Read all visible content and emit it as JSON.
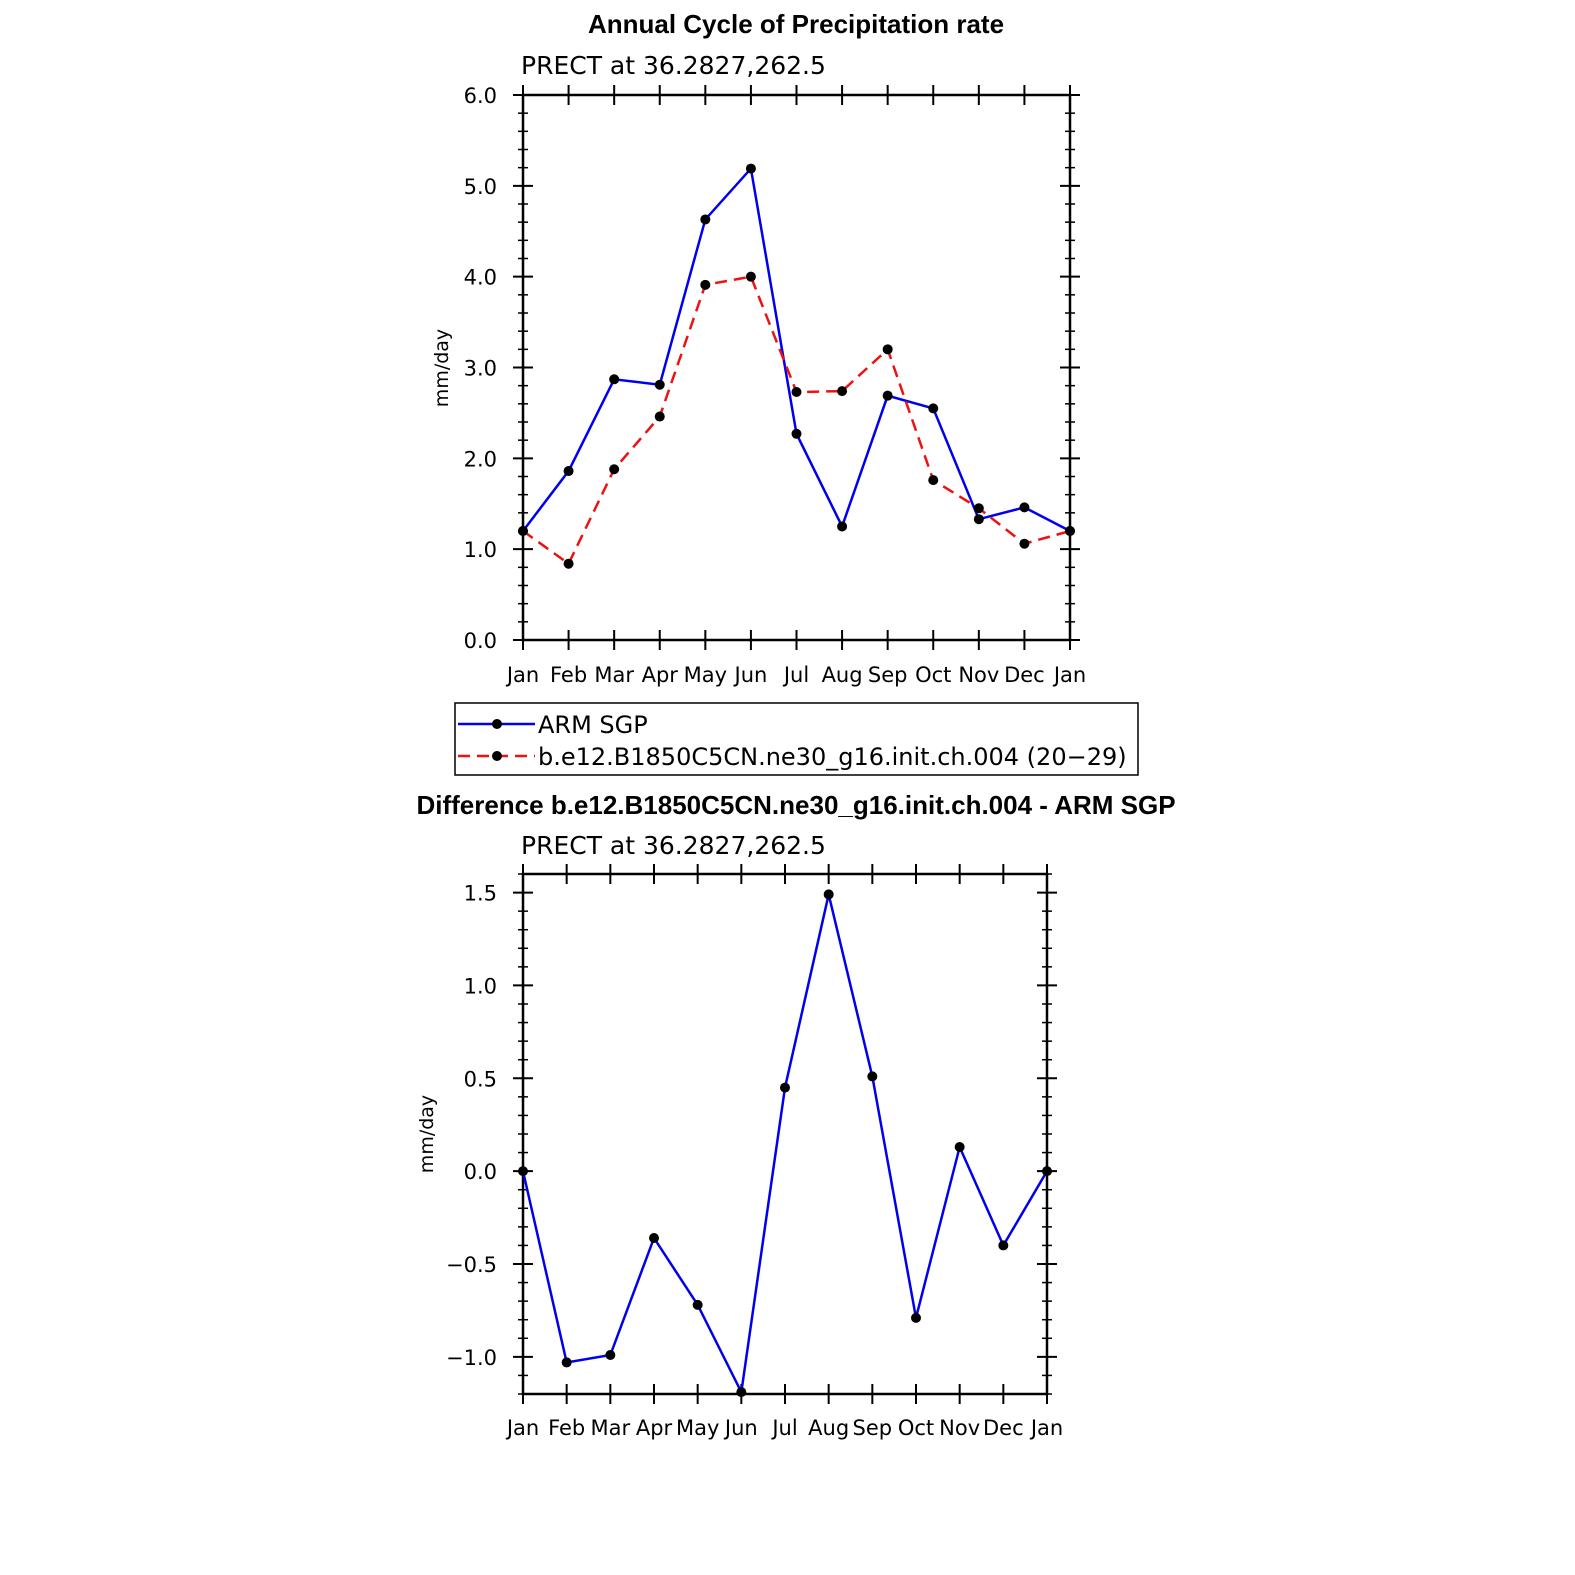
{
  "chart_data": [
    {
      "type": "line",
      "title": "Annual Cycle of Precipitation rate",
      "subtitle": "PRECT at 36.2827,262.5",
      "xlabel": "",
      "ylabel": "mm/day",
      "categories": [
        "Jan",
        "Feb",
        "Mar",
        "Apr",
        "May",
        "Jun",
        "Jul",
        "Aug",
        "Sep",
        "Oct",
        "Nov",
        "Dec",
        "Jan"
      ],
      "ylim": [
        0,
        6
      ],
      "yticks": [
        0,
        1,
        2,
        3,
        4,
        5,
        6
      ],
      "ytick_labels": [
        "0.0",
        "1.0",
        "2.0",
        "3.0",
        "4.0",
        "5.0",
        "6.0"
      ],
      "series": [
        {
          "name": "ARM SGP",
          "color": "#0000ee",
          "dash": "solid",
          "values": [
            1.2,
            1.86,
            2.87,
            2.81,
            4.63,
            5.19,
            2.27,
            1.25,
            2.69,
            2.55,
            1.33,
            1.46,
            1.2
          ]
        },
        {
          "name": "b.e12.B1850C5CN.ne30_g16.init.ch.004 (20−29)",
          "color": "#ee1111",
          "dash": "dashed",
          "values": [
            1.2,
            0.84,
            1.88,
            2.46,
            3.91,
            4.0,
            2.73,
            2.74,
            3.2,
            1.76,
            1.45,
            1.06,
            1.2
          ]
        }
      ]
    },
    {
      "type": "line",
      "title": "Difference b.e12.B1850C5CN.ne30_g16.init.ch.004 - ARM SGP",
      "subtitle": "PRECT at 36.2827,262.5",
      "xlabel": "",
      "ylabel": "mm/day",
      "categories": [
        "Jan",
        "Feb",
        "Mar",
        "Apr",
        "May",
        "Jun",
        "Jul",
        "Aug",
        "Sep",
        "Oct",
        "Nov",
        "Dec",
        "Jan"
      ],
      "ylim": [
        -1.2,
        1.6
      ],
      "yticks": [
        -1.0,
        -0.5,
        0.0,
        0.5,
        1.0,
        1.5
      ],
      "ytick_labels": [
        "−1.0",
        "−0.5",
        "0.0",
        "0.5",
        "1.0",
        "1.5"
      ],
      "series": [
        {
          "name": "Difference",
          "color": "#0000ee",
          "dash": "solid",
          "values": [
            0.0,
            -1.03,
            -0.99,
            -0.36,
            -0.72,
            -1.19,
            0.45,
            1.49,
            0.51,
            -0.79,
            0.13,
            -0.4,
            0.0
          ]
        }
      ]
    }
  ]
}
